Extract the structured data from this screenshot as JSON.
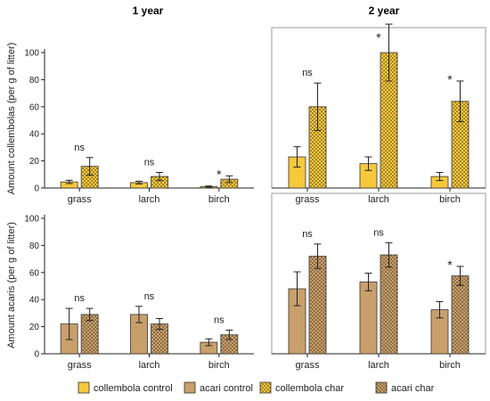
{
  "column_titles": [
    "1 year",
    "2 year"
  ],
  "ylabels": {
    "top": "Amount collembolas (per g of litter)",
    "bottom": "Amount acaris (per g of litter)"
  },
  "legend": [
    {
      "label": "collembola control",
      "key": "cc"
    },
    {
      "label": "acari control",
      "key": "ac"
    },
    {
      "label": "collembola char",
      "key": "cch"
    },
    {
      "label": "acari char",
      "key": "ach"
    }
  ],
  "colors": {
    "collembola": "#f6c83c",
    "acari": "#c9a06b",
    "edge": "#333333"
  },
  "chart_data": [
    {
      "type": "bar",
      "panel": "collembola-1-year",
      "title": "1 year",
      "ylabel": "Amount collembolas (per g of litter)",
      "categories": [
        "grass",
        "larch",
        "birch"
      ],
      "ylim": [
        0,
        100
      ],
      "yticks": [
        0,
        20,
        40,
        60,
        80,
        100
      ],
      "series": [
        {
          "name": "collembola control",
          "values": [
            4.5,
            4,
            1
          ],
          "errors": [
            1.2,
            1,
            0.5
          ]
        },
        {
          "name": "collembola char",
          "values": [
            16,
            8.5,
            6.5
          ],
          "errors": [
            6.5,
            3,
            2.5
          ]
        }
      ],
      "annotations": [
        "ns",
        "ns",
        "*"
      ]
    },
    {
      "type": "bar",
      "panel": "collembola-2-year",
      "title": "2 year",
      "categories": [
        "grass",
        "larch",
        "birch"
      ],
      "ylim": [
        0,
        100
      ],
      "yticks": [
        0,
        20,
        40,
        60,
        80,
        100
      ],
      "series": [
        {
          "name": "collembola control",
          "values": [
            23,
            18,
            8.5
          ],
          "errors": [
            7.5,
            5,
            3
          ]
        },
        {
          "name": "collembola char",
          "values": [
            60,
            100,
            64
          ],
          "errors": [
            17.5,
            21,
            15
          ]
        }
      ],
      "annotations": [
        "ns",
        "*",
        "*"
      ]
    },
    {
      "type": "bar",
      "panel": "acari-1-year",
      "ylabel": "Amount acaris (per g of litter)",
      "categories": [
        "grass",
        "larch",
        "birch"
      ],
      "ylim": [
        0,
        100
      ],
      "yticks": [
        0,
        20,
        40,
        60,
        80,
        100
      ],
      "series": [
        {
          "name": "acari control",
          "values": [
            22,
            29,
            8.5
          ],
          "errors": [
            11.5,
            6,
            2.5
          ]
        },
        {
          "name": "acari char",
          "values": [
            29,
            22,
            14
          ],
          "errors": [
            4.5,
            4,
            3.5
          ]
        }
      ],
      "annotations": [
        "ns",
        "ns",
        "ns"
      ]
    },
    {
      "type": "bar",
      "panel": "acari-2-year",
      "categories": [
        "grass",
        "larch",
        "birch"
      ],
      "ylim": [
        0,
        100
      ],
      "yticks": [
        0,
        20,
        40,
        60,
        80,
        100
      ],
      "series": [
        {
          "name": "acari control",
          "values": [
            48,
            53,
            32.5
          ],
          "errors": [
            12.5,
            6.5,
            6
          ]
        },
        {
          "name": "acari char",
          "values": [
            72,
            73,
            57.5
          ],
          "errors": [
            9,
            9,
            7
          ]
        }
      ],
      "annotations": [
        "ns",
        "ns",
        "*"
      ]
    }
  ]
}
